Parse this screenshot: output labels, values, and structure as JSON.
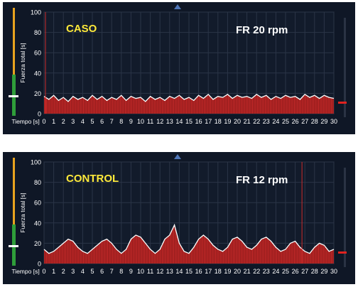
{
  "chart_data": [
    {
      "type": "area",
      "annotations": [
        "CASO",
        "FR 20 rpm"
      ],
      "ylabel": "Fuerza total [s]",
      "xlabel": "Tiempo [s]",
      "xlim": [
        0,
        30
      ],
      "ylim": [
        0,
        100
      ],
      "xticks": [
        "0",
        "1",
        "2",
        "3",
        "4",
        "5",
        "6",
        "7",
        "8",
        "9",
        "10",
        "11",
        "12",
        "13",
        "14",
        "15",
        "16",
        "17",
        "18",
        "19",
        "20",
        "21",
        "22",
        "23",
        "24",
        "25",
        "26",
        "27",
        "28",
        "29",
        "30"
      ],
      "yticks": [
        "0",
        "20",
        "40",
        "60",
        "80",
        "100"
      ],
      "grid": true,
      "markers": [
        {
          "x": 0.15,
          "color": "#cc2a2a"
        }
      ],
      "colors": {
        "fill": "#8c1a1a",
        "bars": "#cf2d2d",
        "line": "#ffffff",
        "annotation": "#ffea3a",
        "label": "#ffffff"
      },
      "series": [
        {
          "breath_rate_rpm": 20,
          "x": [
            0,
            0.5,
            1,
            1.5,
            2,
            2.5,
            3,
            3.5,
            4,
            4.5,
            5,
            5.5,
            6,
            6.5,
            7,
            7.5,
            8,
            8.5,
            9,
            9.5,
            10,
            10.5,
            11,
            11.5,
            12,
            12.5,
            13,
            13.5,
            14,
            14.5,
            15,
            15.5,
            16,
            16.5,
            17,
            17.5,
            18,
            18.5,
            19,
            19.5,
            20,
            20.5,
            21,
            21.5,
            22,
            22.5,
            23,
            23.5,
            24,
            24.5,
            25,
            25.5,
            26,
            26.5,
            27,
            27.5,
            28,
            28.5,
            29,
            29.5,
            30
          ],
          "y": [
            17,
            14,
            18,
            13,
            16,
            12,
            17,
            14,
            16,
            13,
            18,
            14,
            17,
            13,
            16,
            14,
            18,
            13,
            17,
            15,
            16,
            12,
            17,
            14,
            16,
            13,
            17,
            15,
            18,
            14,
            16,
            13,
            18,
            15,
            19,
            14,
            17,
            16,
            19,
            15,
            18,
            16,
            17,
            15,
            19,
            16,
            18,
            14,
            17,
            15,
            18,
            16,
            17,
            14,
            19,
            16,
            18,
            15,
            18,
            16,
            15
          ]
        }
      ]
    },
    {
      "type": "area",
      "annotations": [
        "CONTROL",
        "FR 12 rpm"
      ],
      "ylabel": "Fuerza total [s]",
      "xlabel": "Tiempo [s]",
      "xlim": [
        0,
        30
      ],
      "ylim": [
        0,
        100
      ],
      "xticks": [
        "0",
        "1",
        "2",
        "3",
        "4",
        "5",
        "6",
        "7",
        "8",
        "9",
        "10",
        "11",
        "12",
        "13",
        "14",
        "15",
        "16",
        "17",
        "18",
        "19",
        "20",
        "21",
        "22",
        "23",
        "24",
        "25",
        "26",
        "27",
        "28",
        "29",
        "30"
      ],
      "yticks": [
        "0",
        "20",
        "40",
        "60",
        "80",
        "100"
      ],
      "grid": true,
      "markers": [
        {
          "x": 26.7,
          "color": "#cc2a2a"
        }
      ],
      "colors": {
        "fill": "#8c1a1a",
        "bars": "#cf2d2d",
        "line": "#ffffff",
        "annotation": "#ffea3a",
        "label": "#ffffff"
      },
      "series": [
        {
          "breath_rate_rpm": 12,
          "x": [
            0,
            0.5,
            1,
            1.5,
            2,
            2.5,
            3,
            3.5,
            4,
            4.5,
            5,
            5.5,
            6,
            6.5,
            7,
            7.5,
            8,
            8.5,
            9,
            9.5,
            10,
            10.5,
            11,
            11.5,
            12,
            12.5,
            13,
            13.5,
            14,
            14.5,
            15,
            15.5,
            16,
            16.5,
            17,
            17.5,
            18,
            18.5,
            19,
            19.5,
            20,
            20.5,
            21,
            21.5,
            22,
            22.5,
            23,
            23.5,
            24,
            24.5,
            25,
            25.5,
            26,
            26.5,
            27,
            27.5,
            28,
            28.5,
            29,
            29.5,
            30
          ],
          "y": [
            14,
            10,
            12,
            16,
            20,
            24,
            22,
            16,
            12,
            10,
            14,
            18,
            22,
            24,
            20,
            14,
            10,
            14,
            24,
            28,
            26,
            20,
            14,
            10,
            14,
            24,
            28,
            38,
            20,
            12,
            10,
            16,
            24,
            28,
            24,
            18,
            14,
            12,
            16,
            24,
            26,
            22,
            16,
            14,
            18,
            24,
            26,
            22,
            16,
            12,
            14,
            20,
            22,
            16,
            12,
            10,
            16,
            20,
            18,
            12,
            14
          ]
        }
      ]
    }
  ]
}
